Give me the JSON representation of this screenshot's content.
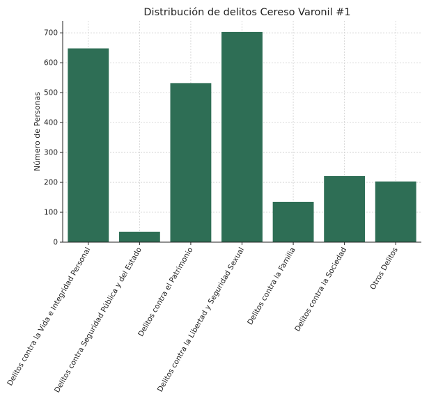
{
  "chart_data": {
    "type": "bar",
    "title": "Distribución de delitos Cereso Varonil #1",
    "xlabel": "",
    "ylabel": "Número de Personas",
    "categories": [
      "Delitos contra la Vida e Integridad Personal",
      "Delitos contra Seguridad Pública y del Estado",
      "Delitos contra el Patrimonio",
      "Delitos contra la Libertad y Seguridad Sexual",
      "Delitos contra la Familia",
      "Delitos contra la Sociedad",
      "Otros Delitos"
    ],
    "values": [
      648,
      35,
      532,
      703,
      135,
      221,
      203
    ],
    "ylim": [
      0,
      740
    ],
    "yticks": [
      0,
      100,
      200,
      300,
      400,
      500,
      600,
      700
    ],
    "ytick_labels": [
      "0",
      "100",
      "200",
      "300",
      "400",
      "500",
      "600",
      "700"
    ],
    "grid": true,
    "bar_color": "#2e6e55",
    "x_tick_rotation": "-60"
  }
}
